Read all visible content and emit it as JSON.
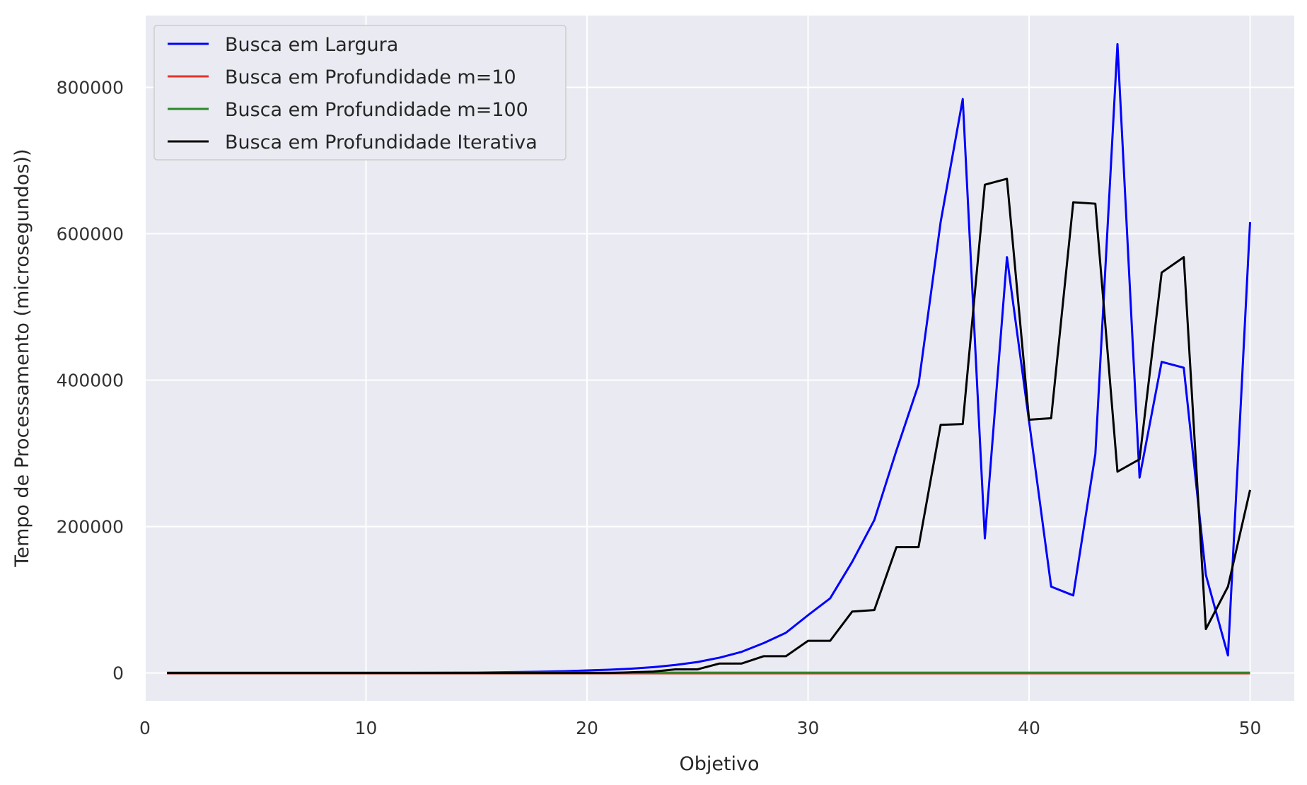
{
  "chart_data": {
    "type": "line",
    "title": "",
    "xlabel": "Objetivo",
    "ylabel": "Tempo de Processamento (microsegundos))",
    "xlim": [
      0,
      52
    ],
    "ylim": [
      -38000,
      898000
    ],
    "xticks": [
      0,
      10,
      20,
      30,
      40,
      50
    ],
    "yticks": [
      0,
      200000,
      400000,
      600000,
      800000
    ],
    "grid": true,
    "legend_position": "upper-left",
    "colors": {
      "background": "#EAEAF2",
      "grid": "#FFFFFF",
      "legend_bg": "#EAEAF2",
      "legend_border": "#CCCCCC"
    },
    "x": [
      1,
      2,
      3,
      4,
      5,
      6,
      7,
      8,
      9,
      10,
      11,
      12,
      13,
      14,
      15,
      16,
      17,
      18,
      19,
      20,
      21,
      22,
      23,
      24,
      25,
      26,
      27,
      28,
      29,
      30,
      31,
      32,
      33,
      34,
      35,
      36,
      37,
      38,
      39,
      40,
      41,
      42,
      43,
      44,
      45,
      46,
      47,
      48,
      49,
      50
    ],
    "series": [
      {
        "name": "Busca em Largura",
        "color": "#0000FF",
        "values": [
          0,
          0,
          0,
          0,
          0,
          0,
          0,
          0,
          0,
          0,
          100,
          200,
          300,
          500,
          700,
          1000,
          1300,
          1800,
          2500,
          3500,
          4500,
          6000,
          8000,
          11000,
          15000,
          21000,
          29000,
          41000,
          55000,
          79000,
          102000,
          152000,
          209000,
          304000,
          394000,
          616000,
          784000,
          184000,
          568000,
          344000,
          118000,
          106000,
          299000,
          859000,
          267000,
          425000,
          417000,
          134000,
          24000,
          616000
        ]
      },
      {
        "name": "Busca em Profundidade m=10",
        "color": "#E8332B",
        "values": [
          0,
          0,
          0,
          0,
          0,
          0,
          0,
          0,
          0,
          0,
          0,
          0,
          0,
          0,
          0,
          0,
          0,
          0,
          0,
          0,
          0,
          0,
          0,
          0,
          0,
          0,
          0,
          0,
          0,
          0,
          0,
          0,
          0,
          0,
          0,
          0,
          0,
          0,
          0,
          0,
          0,
          0,
          0,
          0,
          0,
          0,
          0,
          0,
          0,
          0
        ]
      },
      {
        "name": "Busca em Profundidade m=100",
        "color": "#2A8A2A",
        "values": [
          0,
          0,
          0,
          0,
          0,
          0,
          0,
          0,
          0,
          0,
          0,
          0,
          0,
          0,
          0,
          0,
          0,
          0,
          0,
          0,
          0,
          0,
          0,
          0,
          0,
          0,
          0,
          0,
          0,
          0,
          0,
          0,
          0,
          0,
          0,
          0,
          0,
          0,
          0,
          0,
          0,
          0,
          0,
          0,
          0,
          0,
          0,
          0,
          0,
          0
        ]
      },
      {
        "name": "Busca em Profundidade Iterativa",
        "color": "#000000",
        "values": [
          0,
          0,
          0,
          0,
          0,
          0,
          0,
          0,
          0,
          0,
          0,
          0,
          0,
          0,
          0,
          0,
          0,
          0,
          0,
          0,
          0,
          1000,
          2000,
          5000,
          5000,
          13000,
          13000,
          23000,
          23000,
          44000,
          44000,
          84000,
          86000,
          172000,
          172000,
          339000,
          340000,
          667000,
          675000,
          346000,
          348000,
          643000,
          641000,
          275000,
          292000,
          547000,
          568000,
          60000,
          118000,
          250000
        ]
      }
    ]
  }
}
